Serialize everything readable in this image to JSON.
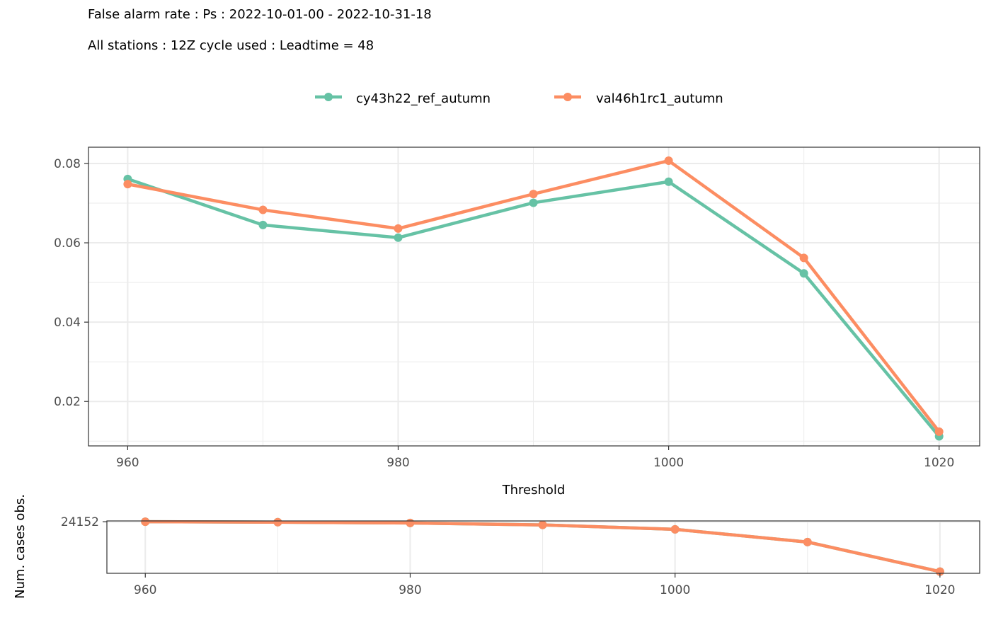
{
  "header": {
    "title": "False alarm rate : Ps : 2022-10-01-00 - 2022-10-31-18",
    "subtitle": "All stations : 12Z cycle used : Leadtime = 48"
  },
  "legend": {
    "items": [
      {
        "label": "cy43h22_ref_autumn",
        "color": "#66C2A5"
      },
      {
        "label": "val46h1rc1_autumn",
        "color": "#FC8D62"
      }
    ]
  },
  "chart_data": [
    {
      "type": "line",
      "xlabel": "Threshold",
      "ylabel": "",
      "x": [
        960,
        970,
        980,
        990,
        1000,
        1010,
        1020
      ],
      "xticks": [
        960,
        980,
        1000,
        1020
      ],
      "yticks": [
        0.02,
        0.04,
        0.06,
        0.08
      ],
      "ytick_labels": [
        "0.02",
        "0.04",
        "0.06",
        "0.08"
      ],
      "xlim": [
        957.1,
        1023.0
      ],
      "ylim": [
        0.0088,
        0.0841
      ],
      "grid": true,
      "legend_position": "top",
      "series": [
        {
          "name": "cy43h22_ref_autumn",
          "color": "#66C2A5",
          "values": [
            0.0761,
            0.0645,
            0.0613,
            0.0701,
            0.0754,
            0.0523,
            0.0112
          ]
        },
        {
          "name": "val46h1rc1_autumn",
          "color": "#FC8D62",
          "values": [
            0.0748,
            0.0683,
            0.0636,
            0.0723,
            0.0807,
            0.0562,
            0.0124
          ]
        }
      ]
    },
    {
      "type": "line",
      "xlabel": "",
      "ylabel": "Num. cases obs.",
      "x": [
        960,
        970,
        980,
        990,
        1000,
        1010,
        1020
      ],
      "xticks": [
        960,
        980,
        1000,
        1020
      ],
      "yticks": [
        24152
      ],
      "ytick_labels": [
        "24152"
      ],
      "xlim": [
        957.1,
        1023.0
      ],
      "ylim": [
        22650,
        24175
      ],
      "grid": true,
      "series": [
        {
          "name": "cy43h22_ref_autumn",
          "color": "#66C2A5",
          "values": [
            24152,
            24138,
            24115,
            24058,
            23930,
            23560,
            22700
          ]
        },
        {
          "name": "val46h1rc1_autumn",
          "color": "#FC8D62",
          "values": [
            24152,
            24138,
            24115,
            24058,
            23930,
            23560,
            22700
          ]
        }
      ]
    }
  ]
}
